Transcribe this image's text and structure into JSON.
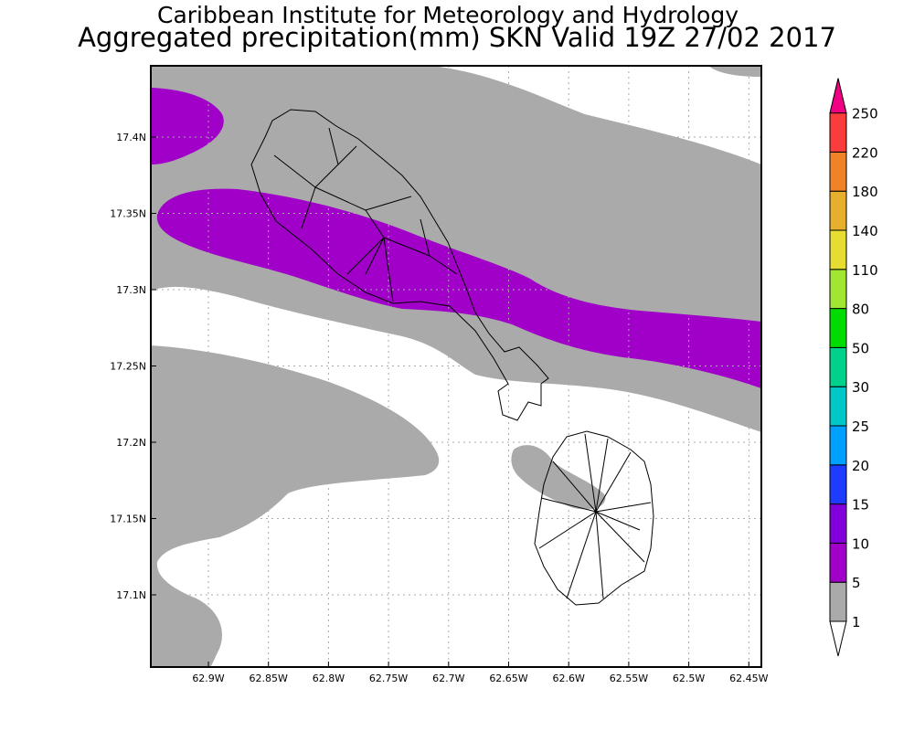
{
  "title_line1": "Caribbean Institute for Meteorology and Hydrology",
  "title_line2": "Aggregated precipitation(mm) SKN Valid 19Z 27/02 2017",
  "map": {
    "lat_labels": [
      "17.4N",
      "17.35N",
      "17.3N",
      "17.25N",
      "17.2N",
      "17.15N",
      "17.1N"
    ],
    "lon_labels": [
      "62.9W",
      "62.85W",
      "62.8W",
      "62.75W",
      "62.7W",
      "62.65W",
      "62.6W",
      "62.55W",
      "62.5W",
      "62.45W"
    ],
    "islands": [
      "St Kitts",
      "Nevis"
    ]
  },
  "colorbar": {
    "levels": [
      "1",
      "5",
      "10",
      "15",
      "20",
      "25",
      "30",
      "50",
      "80",
      "110",
      "140",
      "180",
      "220",
      "250"
    ],
    "colors": [
      "#aaaaaa",
      "#a000c8",
      "#8200dc",
      "#1e3cff",
      "#00a0ff",
      "#00c8c8",
      "#00d28c",
      "#00dc00",
      "#a0e632",
      "#e6dc32",
      "#e6af2d",
      "#f08228",
      "#fa3c3c"
    ],
    "below_color": "#ffffff",
    "above_color": "#f00082"
  }
}
